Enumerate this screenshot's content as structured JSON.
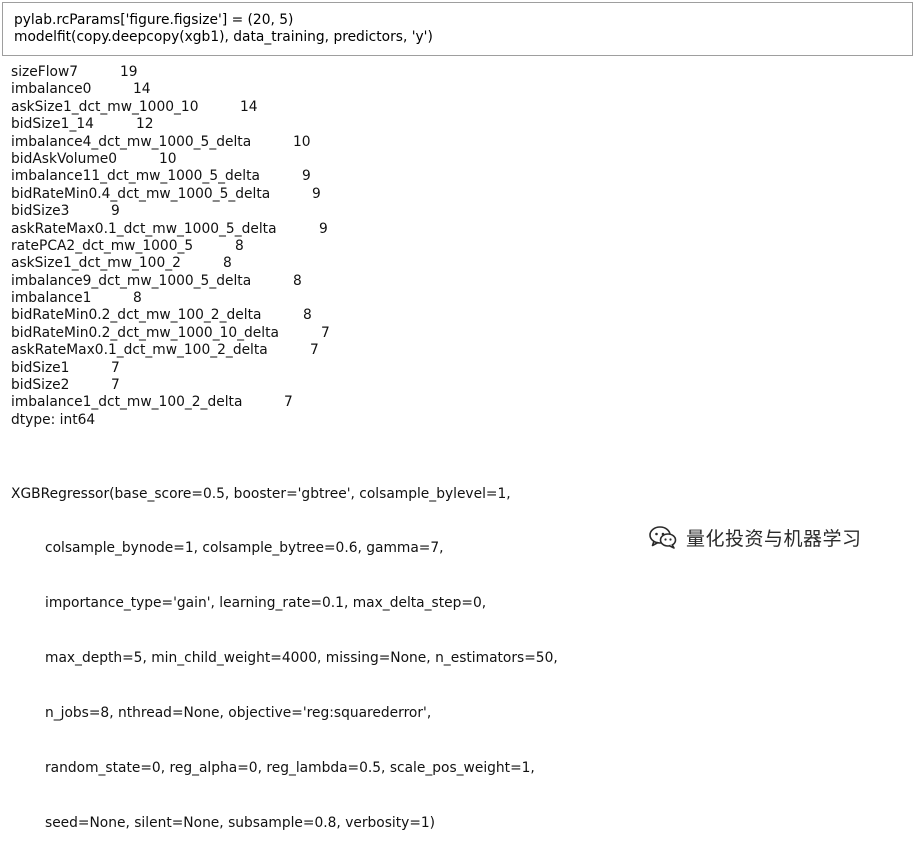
{
  "input_cell": {
    "lines": [
      "pylab.rcParams['figure.figsize'] = (20, 5)",
      "modelfit(copy.deepcopy(xgb1), data_training, predictors, 'y')"
    ]
  },
  "output": {
    "series": [
      {
        "name": "sizeFlow7",
        "value": "19"
      },
      {
        "name": "imbalance0",
        "value": "14"
      },
      {
        "name": "askSize1_dct_mw_1000_10",
        "value": "14"
      },
      {
        "name": "bidSize1_14",
        "value": "12"
      },
      {
        "name": "imbalance4_dct_mw_1000_5_delta",
        "value": "10"
      },
      {
        "name": "bidAskVolume0",
        "value": "10"
      },
      {
        "name": "imbalance11_dct_mw_1000_5_delta",
        "value": "9"
      },
      {
        "name": "bidRateMin0.4_dct_mw_1000_5_delta",
        "value": "9"
      },
      {
        "name": "bidSize3",
        "value": "9"
      },
      {
        "name": "askRateMax0.1_dct_mw_1000_5_delta",
        "value": "9"
      },
      {
        "name": "ratePCA2_dct_mw_1000_5",
        "value": "8"
      },
      {
        "name": "askSize1_dct_mw_100_2",
        "value": "8"
      },
      {
        "name": "imbalance9_dct_mw_1000_5_delta",
        "value": "8"
      },
      {
        "name": "imbalance1",
        "value": "8"
      },
      {
        "name": "bidRateMin0.2_dct_mw_100_2_delta",
        "value": "8"
      },
      {
        "name": "bidRateMin0.2_dct_mw_1000_10_delta",
        "value": "7"
      },
      {
        "name": "askRateMax0.1_dct_mw_100_2_delta",
        "value": "7"
      },
      {
        "name": "bidSize1",
        "value": "7"
      },
      {
        "name": "bidSize2",
        "value": "7"
      },
      {
        "name": "imbalance1_dct_mw_100_2_delta",
        "value": "7"
      }
    ],
    "dtype": "dtype: int64",
    "repr_lines": [
      "XGBRegressor(base_score=0.5, booster='gbtree', colsample_bylevel=1,",
      "colsample_bynode=1, colsample_bytree=0.6, gamma=7,",
      "importance_type='gain', learning_rate=0.1, max_delta_step=0,",
      "max_depth=5, min_child_weight=4000, missing=None, n_estimators=50,",
      "n_jobs=8, nthread=None, objective='reg:squarederror',",
      "random_state=0, reg_alpha=0, reg_lambda=0.5, scale_pos_weight=1,",
      "seed=None, silent=None, subsample=0.8, verbosity=1)"
    ]
  },
  "watermark": {
    "icon": "wechat-icon",
    "text": "量化投资与机器学习"
  }
}
